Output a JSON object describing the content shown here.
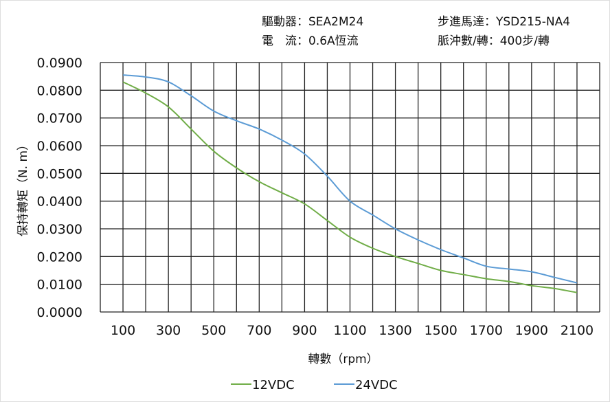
{
  "header": {
    "driver": "驅動器：SEA2M24",
    "motor": "步進馬達：YSD215-NA4",
    "current": "電　流：0.6A恆流",
    "pulses": "脈沖數/轉：400步/轉"
  },
  "chart_data": {
    "type": "line",
    "xlabel": "轉數（rpm）",
    "ylabel": "保持轉矩（N. m）",
    "xlim": [
      0,
      2200
    ],
    "ylim": [
      0,
      0.09
    ],
    "grid": true,
    "legend_placement": "bottom",
    "x_ticks": [
      "100",
      "300",
      "500",
      "700",
      "900",
      "1100",
      "1300",
      "1500",
      "1700",
      "1900",
      "2100"
    ],
    "y_ticks": [
      "0.0000",
      "0.0100",
      "0.0200",
      "0.0300",
      "0.0400",
      "0.0500",
      "0.0600",
      "0.0700",
      "0.0800",
      "0.0900"
    ],
    "x": [
      100,
      200,
      300,
      400,
      500,
      600,
      700,
      800,
      900,
      1000,
      1100,
      1200,
      1300,
      1400,
      1500,
      1600,
      1700,
      1800,
      1900,
      2000,
      2100
    ],
    "series": [
      {
        "name": "12VDC",
        "color": "#70ad47",
        "values": [
          0.083,
          0.079,
          0.074,
          0.066,
          0.058,
          0.052,
          0.047,
          0.043,
          0.039,
          0.033,
          0.027,
          0.023,
          0.02,
          0.0175,
          0.015,
          0.0135,
          0.012,
          0.011,
          0.0095,
          0.0085,
          0.007
        ]
      },
      {
        "name": "24VDC",
        "color": "#5b9bd5",
        "values": [
          0.0855,
          0.0848,
          0.083,
          0.078,
          0.0725,
          0.069,
          0.066,
          0.062,
          0.057,
          0.049,
          0.04,
          0.035,
          0.03,
          0.026,
          0.0225,
          0.0195,
          0.0165,
          0.0155,
          0.0145,
          0.0125,
          0.0105
        ]
      }
    ]
  }
}
